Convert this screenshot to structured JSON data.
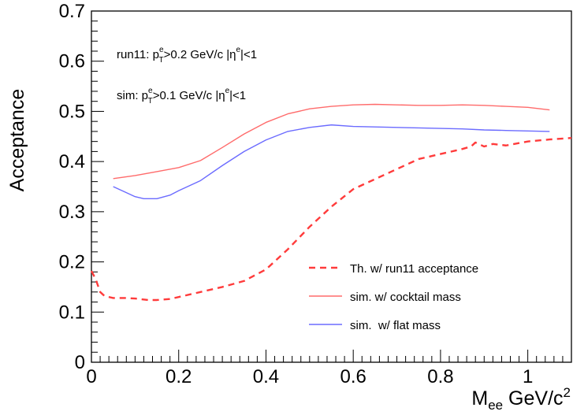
{
  "chart_data": {
    "type": "line",
    "xlabel": {
      "main": "M",
      "sub": "ee",
      "unit": " GeV/c",
      "sup": "2"
    },
    "ylabel": "Acceptance",
    "xlim": [
      0,
      1.1
    ],
    "ylim": [
      0,
      0.7
    ],
    "x_ticks": [
      0,
      0.2,
      0.4,
      0.6,
      0.8,
      1
    ],
    "x_tick_labels": [
      "0",
      "0.2",
      "0.4",
      "0.6",
      "0.8",
      "1"
    ],
    "y_ticks": [
      0,
      0.1,
      0.2,
      0.3,
      0.4,
      0.5,
      0.6,
      0.7
    ],
    "y_tick_labels": [
      "0",
      "0.1",
      "0.2",
      "0.3",
      "0.4",
      "0.5",
      "0.6",
      "0.7"
    ],
    "grid": false,
    "legend_position": "bottom-right",
    "annotations": {
      "run11": {
        "prefix": "run11: p",
        "sup": "e",
        "sub": "T",
        "middle": ">0.2 GeV/c |η",
        "sup2": "e",
        "suffix": "|<1"
      },
      "sim": {
        "prefix": "sim: p",
        "sup": "e",
        "sub": "T",
        "middle": ">0.1 GeV/c |η",
        "sup2": "e",
        "suffix": "|<1"
      }
    },
    "series": [
      {
        "name": "Th. w/ run11 acceptance",
        "color": "#ff3b3b",
        "style": "dashed",
        "x": [
          0.0,
          0.01,
          0.02,
          0.03,
          0.05,
          0.08,
          0.1,
          0.13,
          0.15,
          0.18,
          0.2,
          0.25,
          0.3,
          0.35,
          0.4,
          0.45,
          0.5,
          0.55,
          0.6,
          0.65,
          0.7,
          0.75,
          0.8,
          0.85,
          0.87,
          0.88,
          0.9,
          0.92,
          0.95,
          1.0,
          1.05,
          1.1
        ],
        "values": [
          0.182,
          0.165,
          0.14,
          0.132,
          0.128,
          0.128,
          0.127,
          0.124,
          0.124,
          0.126,
          0.13,
          0.14,
          0.15,
          0.162,
          0.185,
          0.225,
          0.27,
          0.31,
          0.345,
          0.365,
          0.385,
          0.405,
          0.415,
          0.425,
          0.43,
          0.438,
          0.43,
          0.435,
          0.432,
          0.44,
          0.444,
          0.447
        ]
      },
      {
        "name": "sim. w/ cocktail mass",
        "color": "#ff6b6b",
        "style": "solid",
        "x": [
          0.05,
          0.1,
          0.15,
          0.2,
          0.25,
          0.3,
          0.35,
          0.4,
          0.45,
          0.5,
          0.55,
          0.6,
          0.65,
          0.7,
          0.75,
          0.8,
          0.85,
          0.9,
          0.95,
          1.0,
          1.05
        ],
        "values": [
          0.366,
          0.372,
          0.38,
          0.388,
          0.402,
          0.428,
          0.455,
          0.478,
          0.495,
          0.505,
          0.51,
          0.513,
          0.514,
          0.513,
          0.512,
          0.512,
          0.513,
          0.512,
          0.51,
          0.508,
          0.503
        ]
      },
      {
        "name": "sim.  w/ flat mass",
        "color": "#6b6bff",
        "style": "solid",
        "x": [
          0.05,
          0.08,
          0.1,
          0.12,
          0.15,
          0.18,
          0.2,
          0.25,
          0.3,
          0.35,
          0.4,
          0.45,
          0.5,
          0.55,
          0.6,
          0.65,
          0.7,
          0.75,
          0.8,
          0.85,
          0.9,
          0.95,
          1.0,
          1.05
        ],
        "values": [
          0.35,
          0.338,
          0.33,
          0.326,
          0.326,
          0.333,
          0.342,
          0.362,
          0.392,
          0.42,
          0.443,
          0.46,
          0.468,
          0.473,
          0.47,
          0.469,
          0.468,
          0.467,
          0.466,
          0.465,
          0.463,
          0.462,
          0.461,
          0.46
        ]
      }
    ]
  }
}
